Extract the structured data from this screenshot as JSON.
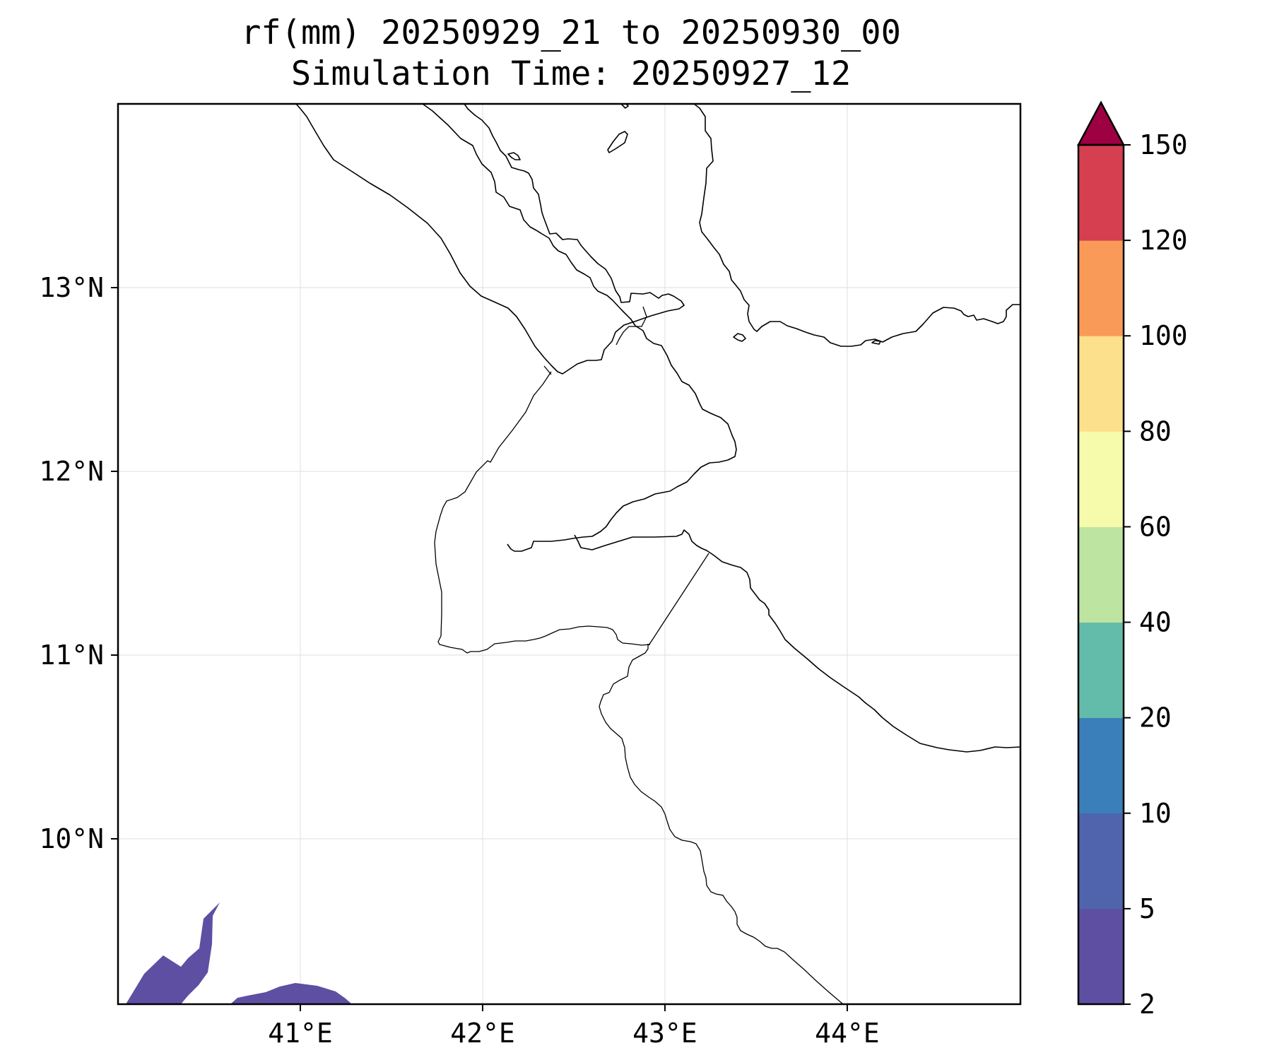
{
  "title": {
    "line1": "rf(mm) 20250929_21 to 20250930_00",
    "line2": "Simulation Time: 20250927_12"
  },
  "map": {
    "lon_range": [
      40.0,
      44.95
    ],
    "lat_range": [
      9.1,
      14.0
    ],
    "x_ticks": [
      {
        "value": 41,
        "label": "41°E"
      },
      {
        "value": 42,
        "label": "42°E"
      },
      {
        "value": 43,
        "label": "43°E"
      },
      {
        "value": 44,
        "label": "44°E"
      }
    ],
    "y_ticks": [
      {
        "value": 13,
        "label": "13°N"
      },
      {
        "value": 12,
        "label": "12°N"
      },
      {
        "value": 11,
        "label": "11°N"
      },
      {
        "value": 10,
        "label": "10°N"
      }
    ],
    "grid": true
  },
  "colorbar": {
    "levels": [
      {
        "value": 2,
        "label": "2"
      },
      {
        "value": 5,
        "label": "5"
      },
      {
        "value": 10,
        "label": "10"
      },
      {
        "value": 20,
        "label": "20"
      },
      {
        "value": 40,
        "label": "40"
      },
      {
        "value": 60,
        "label": "60"
      },
      {
        "value": 80,
        "label": "80"
      },
      {
        "value": 100,
        "label": "100"
      },
      {
        "value": 120,
        "label": "120"
      },
      {
        "value": 150,
        "label": "150"
      }
    ],
    "colors": [
      "#5e4fa2",
      "#4f64ac",
      "#3a7fb9",
      "#63bba9",
      "#bde4a0",
      "#f5fbab",
      "#fde08b",
      "#fa9a58",
      "#d53f4f"
    ],
    "extend_color": "#9e0142",
    "extend": "max"
  },
  "colors": {
    "rain_2_5": "#5e4fa2"
  }
}
